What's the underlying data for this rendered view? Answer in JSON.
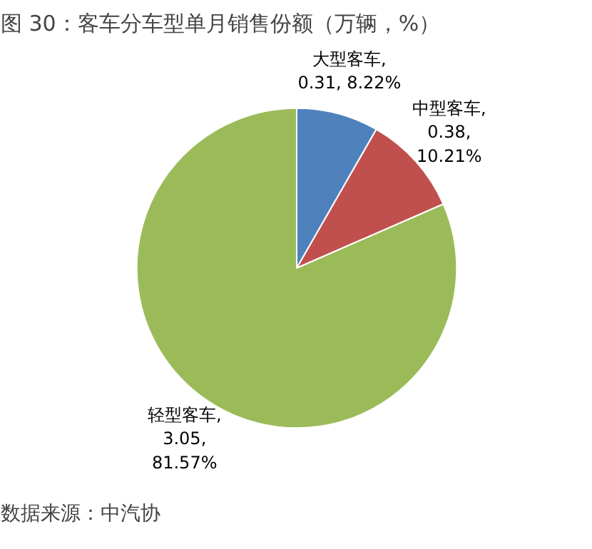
{
  "chart_data": {
    "type": "pie",
    "title": "图 30：客车分车型单月销售份额（万辆，%）",
    "categories": [
      "大型客车",
      "中型客车",
      "轻型客车"
    ],
    "values": [
      0.31,
      0.38,
      3.05
    ],
    "value_labels": [
      ",\n0.31, 8.22%",
      ",\n0.38,\n10.21%",
      ",\n3.05,\n81.57%"
    ],
    "colors": [
      "#4f81bd",
      "#c0504d",
      "#9bbb59"
    ],
    "annotations": [
      "数据来源：中汽协"
    ]
  }
}
